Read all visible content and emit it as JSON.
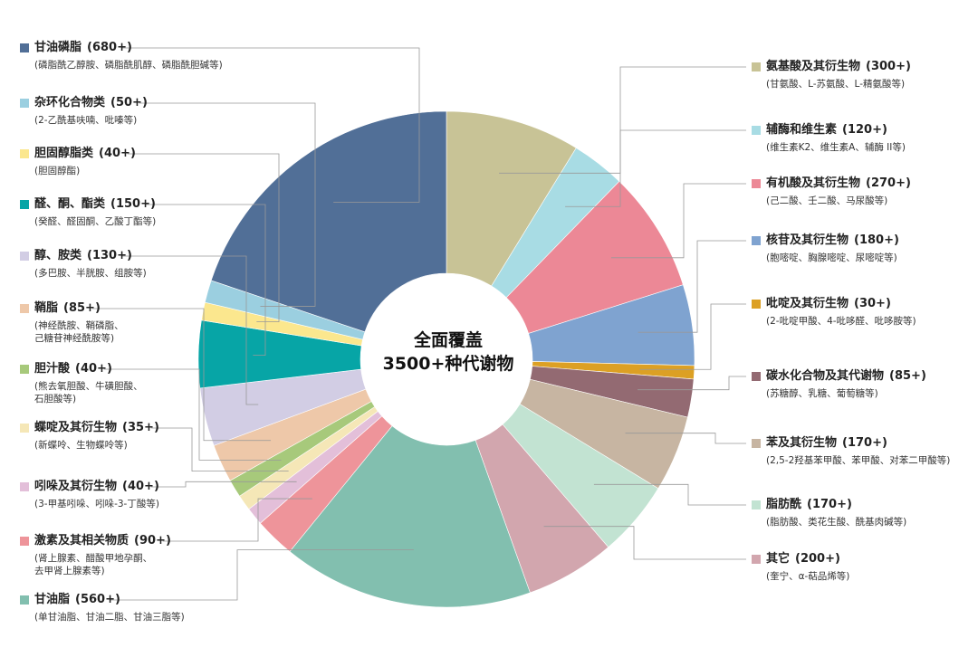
{
  "center": {
    "line1": "全面覆盖",
    "line2": "3500+种代谢物"
  },
  "chart_data": {
    "type": "pie",
    "variant": "donut",
    "categories": [
      {
        "name": "氨基酸及其衍生物",
        "count": "(300+)",
        "examples": "(甘氨酸、L-苏氨酸、L-精氨酸等)",
        "value": 300,
        "color": "#C8C396"
      },
      {
        "name": "辅酶和维生素",
        "count": "(120+)",
        "examples": "(维生素K2、维生素A、辅酶 II等)",
        "value": 120,
        "color": "#A8DCE4"
      },
      {
        "name": "有机酸及其衍生物",
        "count": "(270+)",
        "examples": "(己二酸、壬二酸、马尿酸等)",
        "value": 270,
        "color": "#EC8896"
      },
      {
        "name": "核苷及其衍生物",
        "count": "(180+)",
        "examples": "(胞嘧啶、胸腺嘧啶、尿嘧啶等)",
        "value": 180,
        "color": "#7FA3D0"
      },
      {
        "name": "吡啶及其衍生物",
        "count": "(30+)",
        "examples": "(2-吡啶甲酸、4-吡哆醛、吡哆胺等)",
        "value": 30,
        "color": "#DCA024"
      },
      {
        "name": "碳水化合物及其代谢物",
        "count": "(85+)",
        "examples": "(苏糖醇、乳糖、葡萄糖等)",
        "value": 85,
        "color": "#936A72"
      },
      {
        "name": "苯及其衍生物",
        "count": "(170+)",
        "examples": "(2,5-2羟基苯甲酸、苯甲酸、对苯二甲酸等)",
        "value": 170,
        "color": "#C7B5A2"
      },
      {
        "name": "脂肪酰",
        "count": "(170+)",
        "examples": "(脂肪酸、类花生酸、酰基肉碱等)",
        "value": 170,
        "color": "#C2E3D2"
      },
      {
        "name": "其它",
        "count": "(200+)",
        "examples": "(奎宁、α-萜品烯等)",
        "value": 200,
        "color": "#D2A6AE"
      },
      {
        "name": "甘油脂",
        "count": "(560+)",
        "examples": "(单甘油脂、甘油二脂、甘油三脂等)",
        "value": 560,
        "color": "#82BFAF"
      },
      {
        "name": "激素及其相关物质",
        "count": "(90+)",
        "examples": "(肾上腺素、醋酸甲地孕酮、\n去甲肾上腺素等)",
        "value": 90,
        "color": "#EE949A"
      },
      {
        "name": "吲哚及其衍生物",
        "count": "(40+)",
        "examples": "(3-甲基吲哚、吲哚-3-丁酸等)",
        "value": 40,
        "color": "#E3BFD9"
      },
      {
        "name": "蝶啶及其衍生物",
        "count": "(35+)",
        "examples": "(新蝶呤、生物蝶呤等)",
        "value": 35,
        "color": "#F5E7B7"
      },
      {
        "name": "胆汁酸",
        "count": "(40+)",
        "examples": "(熊去氧胆酸、牛磺胆酸、\n石胆酸等)",
        "value": 40,
        "color": "#A7C97B"
      },
      {
        "name": "鞘脂",
        "count": "(85+)",
        "examples": "(神经酰胺、鞘磷脂、\n己糖苷神经酰胺等)",
        "value": 85,
        "color": "#EEC8A9"
      },
      {
        "name": "醇、胺类",
        "count": "(130+)",
        "examples": "(多巴胺、半胱胺、组胺等)",
        "value": 130,
        "color": "#D2CDE4"
      },
      {
        "name": "醛、酮、酯类",
        "count": "(150+)",
        "examples": "(癸醛、醛固酮、乙酸丁酯等)",
        "value": 150,
        "color": "#07A5A6"
      },
      {
        "name": "胆固醇脂类",
        "count": "(40+)",
        "examples": "(胆固醇酯)",
        "value": 40,
        "color": "#FBE78E"
      },
      {
        "name": "杂环化合物类",
        "count": "(50+)",
        "examples": "(2-乙酰基呋喃、吡嗪等)",
        "value": 50,
        "color": "#9BCFE0"
      },
      {
        "name": "甘油磷脂",
        "count": "(680+)",
        "examples": "(磷脂酰乙醇胺、磷脂酰肌醇、磷脂酰胆碱等)",
        "value": 680,
        "color": "#516F97"
      }
    ]
  }
}
